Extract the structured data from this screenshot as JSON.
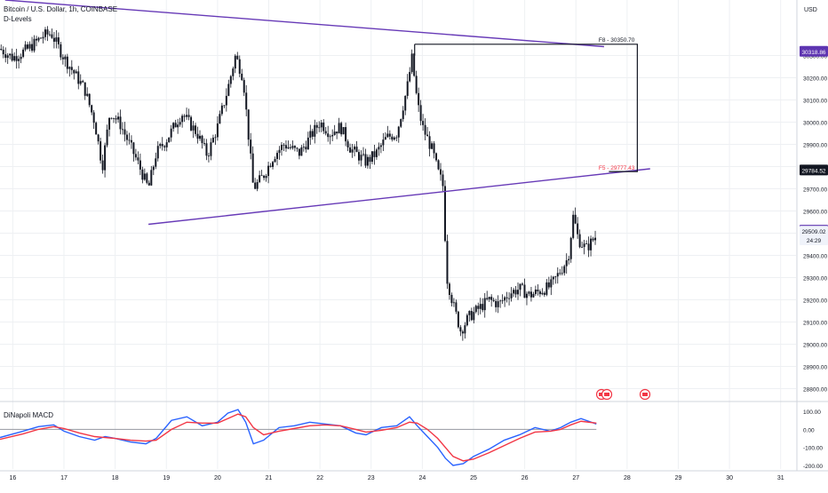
{
  "header": {
    "symbol_line": "Bitcoin / U.S. Dollar, 1h, COINBASE",
    "indicator": "D-Levels",
    "currency": "USD"
  },
  "macd_label": "DiNapoli MACD",
  "colors": {
    "candle": "#131722",
    "channel": "#673ab7",
    "grid": "#eef0f3",
    "macd_line": "#2962ff",
    "signal_line": "#f23645",
    "fib_label": "#f23645",
    "price_badge": "#131722",
    "tag_purple": "#5e35b1"
  },
  "chart_data": [
    {
      "type": "candlestick",
      "title": "Bitcoin / U.S. Dollar, 1h, COINBASE",
      "x_ticks": [
        "16",
        "17",
        "18",
        "19",
        "20",
        "21",
        "22",
        "23",
        "24",
        "25",
        "26",
        "27",
        "28",
        "29",
        "30",
        "31"
      ],
      "x_range": [
        15.75,
        31.3
      ],
      "ylim": [
        28750,
        30550
      ],
      "y_ticks": [
        "30300.00",
        "30200.00",
        "30100.00",
        "30000.00",
        "29900.00",
        "29800.00",
        "29700.00",
        "29600.00",
        "29500.00",
        "29400.00",
        "29300.00",
        "29200.00",
        "29100.00",
        "29000.00",
        "28900.00",
        "28800.00"
      ],
      "y_tick_values": [
        30300,
        30200,
        30100,
        30000,
        29900,
        29800,
        29700,
        29600,
        29500,
        29400,
        29300,
        29200,
        29100,
        29000,
        28900,
        28800
      ],
      "price_path": [
        [
          15.75,
          30330
        ],
        [
          16.0,
          30290
        ],
        [
          16.3,
          30330
        ],
        [
          16.6,
          30390
        ],
        [
          16.75,
          30400
        ],
        [
          17.0,
          30290
        ],
        [
          17.2,
          30220
        ],
        [
          17.4,
          30150
        ],
        [
          17.6,
          30000
        ],
        [
          17.75,
          29800
        ],
        [
          17.9,
          30050
        ],
        [
          18.1,
          29990
        ],
        [
          18.4,
          29840
        ],
        [
          18.65,
          29700
        ],
        [
          18.8,
          29860
        ],
        [
          19.0,
          29920
        ],
        [
          19.3,
          30040
        ],
        [
          19.6,
          29950
        ],
        [
          19.8,
          29850
        ],
        [
          20.0,
          29980
        ],
        [
          20.2,
          30150
        ],
        [
          20.35,
          30300
        ],
        [
          20.5,
          30200
        ],
        [
          20.6,
          29950
        ],
        [
          20.7,
          29700
        ],
        [
          20.9,
          29760
        ],
        [
          21.1,
          29850
        ],
        [
          21.3,
          29900
        ],
        [
          21.6,
          29860
        ],
        [
          21.8,
          29930
        ],
        [
          22.0,
          30000
        ],
        [
          22.2,
          29950
        ],
        [
          22.4,
          29980
        ],
        [
          22.6,
          29880
        ],
        [
          22.9,
          29820
        ],
        [
          23.1,
          29860
        ],
        [
          23.3,
          29930
        ],
        [
          23.5,
          29950
        ],
        [
          23.7,
          30150
        ],
        [
          23.8,
          30290
        ],
        [
          23.9,
          30090
        ],
        [
          24.0,
          29980
        ],
        [
          24.2,
          29870
        ],
        [
          24.3,
          29780
        ],
        [
          24.4,
          29720
        ],
        [
          24.48,
          29300
        ],
        [
          24.6,
          29180
        ],
        [
          24.75,
          29060
        ],
        [
          24.9,
          29120
        ],
        [
          25.1,
          29160
        ],
        [
          25.3,
          29200
        ],
        [
          25.5,
          29180
        ],
        [
          25.7,
          29230
        ],
        [
          25.9,
          29250
        ],
        [
          26.1,
          29220
        ],
        [
          26.3,
          29240
        ],
        [
          26.5,
          29260
        ],
        [
          26.7,
          29330
        ],
        [
          26.85,
          29390
        ],
        [
          26.95,
          29580
        ],
        [
          27.05,
          29470
        ],
        [
          27.2,
          29430
        ],
        [
          27.4,
          29490
        ]
      ],
      "candle_count": 270,
      "channel_upper": {
        "start": [
          15.85,
          30550
        ],
        "end": [
          27.55,
          30340
        ]
      },
      "channel_lower": {
        "start": [
          18.65,
          29540
        ],
        "end": [
          28.45,
          29790
        ]
      },
      "fib_box": {
        "x_start": 23.85,
        "x_end": 28.2,
        "high": 30350.7,
        "low": 29777.43
      },
      "fib_labels": [
        "F8 - 30350.70",
        "F5 - 29777.43"
      ],
      "price_tags": [
        {
          "text": "30318.86",
          "value": 30318.86,
          "style": "purple"
        },
        {
          "text": "29784.52",
          "value": 29784.52,
          "style": "dark"
        },
        {
          "text": "29513.58",
          "value": 29513.58,
          "style": "purple"
        },
        {
          "text": "29509.02",
          "value": 29509.02,
          "style": "light"
        },
        {
          "text": "24:29",
          "value": 29470,
          "style": "light"
        }
      ],
      "event_markers": [
        {
          "x": 27.5,
          "count": 2
        },
        {
          "x": 28.35,
          "count": 1
        }
      ]
    },
    {
      "type": "line",
      "title": "DiNapoli MACD",
      "ylim": [
        -220,
        140
      ],
      "y_ticks": [
        "100.00",
        "0.00",
        "-100.00",
        "-200.00"
      ],
      "y_tick_values": [
        100,
        0,
        -100,
        -200
      ],
      "zero_line": 0,
      "series": [
        {
          "role": "macd",
          "values": [
            [
              15.75,
              -45
            ],
            [
              16.2,
              -10
            ],
            [
              16.5,
              15
            ],
            [
              16.8,
              25
            ],
            [
              17.0,
              -10
            ],
            [
              17.3,
              -40
            ],
            [
              17.6,
              -60
            ],
            [
              17.8,
              -40
            ],
            [
              18.0,
              -50
            ],
            [
              18.3,
              -70
            ],
            [
              18.6,
              -80
            ],
            [
              18.8,
              -50
            ],
            [
              19.1,
              50
            ],
            [
              19.4,
              70
            ],
            [
              19.7,
              20
            ],
            [
              20.0,
              40
            ],
            [
              20.2,
              90
            ],
            [
              20.4,
              110
            ],
            [
              20.55,
              40
            ],
            [
              20.7,
              -80
            ],
            [
              20.9,
              -60
            ],
            [
              21.2,
              10
            ],
            [
              21.5,
              20
            ],
            [
              21.8,
              40
            ],
            [
              22.1,
              30
            ],
            [
              22.4,
              20
            ],
            [
              22.7,
              -20
            ],
            [
              22.9,
              -30
            ],
            [
              23.2,
              10
            ],
            [
              23.5,
              20
            ],
            [
              23.75,
              70
            ],
            [
              23.9,
              20
            ],
            [
              24.1,
              -40
            ],
            [
              24.3,
              -100
            ],
            [
              24.45,
              -160
            ],
            [
              24.6,
              -200
            ],
            [
              24.8,
              -190
            ],
            [
              25.0,
              -150
            ],
            [
              25.3,
              -110
            ],
            [
              25.6,
              -60
            ],
            [
              25.9,
              -30
            ],
            [
              26.2,
              10
            ],
            [
              26.5,
              -10
            ],
            [
              26.7,
              10
            ],
            [
              26.9,
              40
            ],
            [
              27.1,
              60
            ],
            [
              27.4,
              30
            ]
          ]
        },
        {
          "role": "signal",
          "values": [
            [
              15.75,
              -55
            ],
            [
              16.2,
              -25
            ],
            [
              16.5,
              0
            ],
            [
              16.8,
              15
            ],
            [
              17.0,
              5
            ],
            [
              17.3,
              -20
            ],
            [
              17.6,
              -40
            ],
            [
              17.8,
              -45
            ],
            [
              18.0,
              -50
            ],
            [
              18.3,
              -60
            ],
            [
              18.6,
              -65
            ],
            [
              18.8,
              -60
            ],
            [
              19.1,
              0
            ],
            [
              19.4,
              40
            ],
            [
              19.7,
              35
            ],
            [
              20.0,
              35
            ],
            [
              20.2,
              60
            ],
            [
              20.4,
              85
            ],
            [
              20.55,
              70
            ],
            [
              20.7,
              10
            ],
            [
              20.9,
              -30
            ],
            [
              21.2,
              -10
            ],
            [
              21.5,
              5
            ],
            [
              21.8,
              20
            ],
            [
              22.1,
              25
            ],
            [
              22.4,
              20
            ],
            [
              22.7,
              0
            ],
            [
              22.9,
              -15
            ],
            [
              23.2,
              -5
            ],
            [
              23.5,
              10
            ],
            [
              23.75,
              40
            ],
            [
              23.9,
              35
            ],
            [
              24.1,
              0
            ],
            [
              24.3,
              -50
            ],
            [
              24.45,
              -100
            ],
            [
              24.6,
              -150
            ],
            [
              24.8,
              -175
            ],
            [
              25.0,
              -165
            ],
            [
              25.3,
              -130
            ],
            [
              25.6,
              -90
            ],
            [
              25.9,
              -50
            ],
            [
              26.2,
              -15
            ],
            [
              26.5,
              -10
            ],
            [
              26.7,
              0
            ],
            [
              26.9,
              25
            ],
            [
              27.1,
              45
            ],
            [
              27.4,
              35
            ]
          ]
        }
      ]
    }
  ]
}
